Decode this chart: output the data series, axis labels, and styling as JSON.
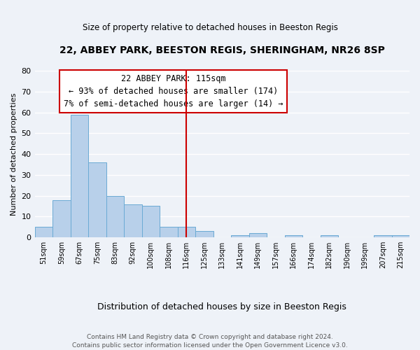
{
  "title": "22, ABBEY PARK, BEESTON REGIS, SHERINGHAM, NR26 8SP",
  "subtitle": "Size of property relative to detached houses in Beeston Regis",
  "xlabel": "Distribution of detached houses by size in Beeston Regis",
  "ylabel": "Number of detached properties",
  "bin_labels": [
    "51sqm",
    "59sqm",
    "67sqm",
    "75sqm",
    "83sqm",
    "92sqm",
    "100sqm",
    "108sqm",
    "116sqm",
    "125sqm",
    "133sqm",
    "141sqm",
    "149sqm",
    "157sqm",
    "166sqm",
    "174sqm",
    "182sqm",
    "190sqm",
    "199sqm",
    "207sqm",
    "215sqm"
  ],
  "bar_values": [
    5,
    18,
    59,
    36,
    20,
    16,
    15,
    5,
    5,
    3,
    0,
    1,
    2,
    0,
    1,
    0,
    1,
    0,
    0,
    1,
    1
  ],
  "bar_color": "#b8d0ea",
  "bar_edge_color": "#6aaad4",
  "vline_x": 8,
  "vline_color": "#cc0000",
  "ylim": [
    0,
    80
  ],
  "yticks": [
    0,
    10,
    20,
    30,
    40,
    50,
    60,
    70,
    80
  ],
  "annotation_title": "22 ABBEY PARK: 115sqm",
  "annotation_line1": "← 93% of detached houses are smaller (174)",
  "annotation_line2": "7% of semi-detached houses are larger (14) →",
  "footer_line1": "Contains HM Land Registry data © Crown copyright and database right 2024.",
  "footer_line2": "Contains public sector information licensed under the Open Government Licence v3.0.",
  "bg_color": "#eef2f8",
  "grid_color": "#ffffff",
  "title_fontsize": 10,
  "subtitle_fontsize": 8.5,
  "ann_fontsize": 8.5,
  "ylabel_fontsize": 8,
  "xlabel_fontsize": 9,
  "footer_fontsize": 6.5
}
